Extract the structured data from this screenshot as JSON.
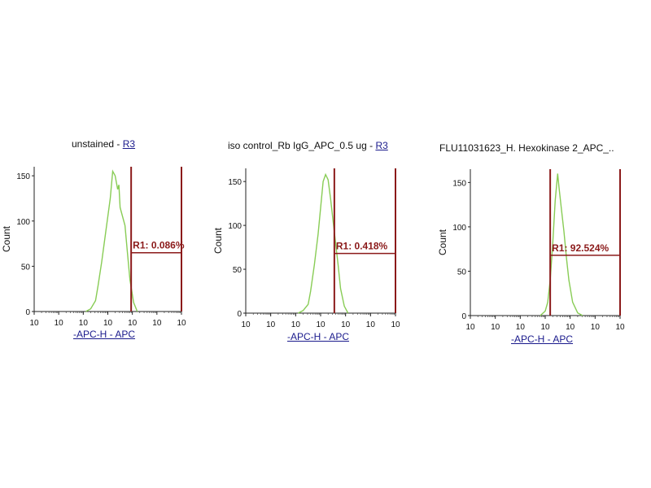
{
  "chart_data": [
    {
      "type": "area",
      "title": "unstained - ",
      "title_link": "R3",
      "xlabel": "-APC-H - APC",
      "ylabel": "Count",
      "yticks": [
        "0",
        "50",
        "100",
        "150"
      ],
      "ylim": [
        0,
        160
      ],
      "xticks": [
        "10",
        "10",
        "10",
        "10",
        "10",
        "10",
        "10"
      ],
      "xlim": [
        0,
        6
      ],
      "series": [
        {
          "color": "#88cc55",
          "x": [
            2.1,
            2.3,
            2.5,
            2.6,
            2.75,
            2.9,
            3.0,
            3.1,
            3.2,
            3.3,
            3.4,
            3.45,
            3.5,
            3.6,
            3.7,
            3.8,
            3.9,
            4.05,
            4.2
          ],
          "y": [
            0,
            3,
            12,
            28,
            55,
            85,
            105,
            125,
            155,
            150,
            135,
            140,
            115,
            105,
            95,
            65,
            35,
            10,
            0
          ]
        }
      ],
      "gate": {
        "label": "R1: 0.086%",
        "x_start": 3.95,
        "x_end": 6.0,
        "level": 65,
        "color": "#8b1a1a"
      }
    },
    {
      "type": "area",
      "title": "iso control_Rb IgG_APC_0.5 ug - ",
      "title_link": "R3",
      "xlabel": "-APC-H - APC",
      "ylabel": "Count",
      "yticks": [
        "0",
        "50",
        "100",
        "150"
      ],
      "ylim": [
        0,
        165
      ],
      "xticks": [
        "10",
        "10",
        "10",
        "10",
        "10",
        "10",
        "10"
      ],
      "xlim": [
        0,
        6
      ],
      "series": [
        {
          "color": "#88cc55",
          "x": [
            2.1,
            2.3,
            2.5,
            2.6,
            2.75,
            2.9,
            3.0,
            3.1,
            3.2,
            3.3,
            3.4,
            3.5,
            3.6,
            3.7,
            3.8,
            3.95,
            4.1
          ],
          "y": [
            0,
            3,
            10,
            25,
            55,
            90,
            120,
            150,
            158,
            152,
            130,
            105,
            80,
            55,
            28,
            8,
            0
          ]
        }
      ],
      "gate": {
        "label": "R1: 0.418%",
        "x_start": 3.55,
        "x_end": 6.0,
        "level": 68,
        "color": "#8b1a1a"
      }
    },
    {
      "type": "area",
      "title": "FLU11031623_H. Hexokinase 2_APC_..",
      "title_link": "",
      "xlabel": "-APC-H - APC",
      "ylabel": "Count",
      "yticks": [
        "0",
        "50",
        "100",
        "150"
      ],
      "ylim": [
        0,
        165
      ],
      "xticks": [
        "10",
        "10",
        "10",
        "10",
        "10",
        "10",
        "10"
      ],
      "xlim": [
        0,
        6
      ],
      "series": [
        {
          "color": "#88cc55",
          "x": [
            2.8,
            3.0,
            3.1,
            3.2,
            3.3,
            3.4,
            3.5,
            3.55,
            3.65,
            3.75,
            3.85,
            3.95,
            4.1,
            4.3,
            4.5
          ],
          "y": [
            0,
            5,
            15,
            40,
            80,
            130,
            160,
            145,
            120,
            95,
            65,
            40,
            15,
            3,
            0
          ]
        }
      ],
      "gate": {
        "label": "R1: 92.524%",
        "x_start": 3.2,
        "x_end": 6.0,
        "level": 68,
        "color": "#8b1a1a"
      }
    }
  ]
}
